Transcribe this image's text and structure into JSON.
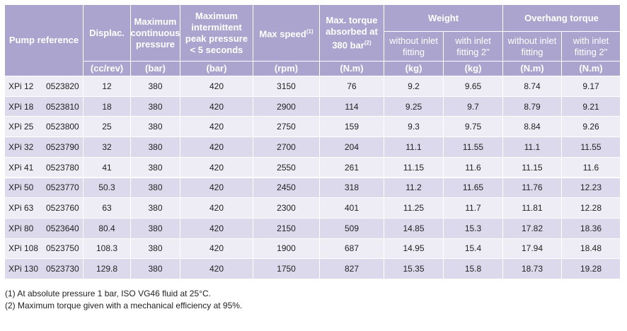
{
  "header": {
    "pump_reference": "Pump reference",
    "displacement": "Displac.",
    "max_continuous_pressure": "Maximum continuous pressure",
    "max_intermittent_pressure": "Maximum intermittent peak pressure < 5 seconds",
    "max_speed": {
      "text": "Max speed",
      "note": "(1)"
    },
    "max_torque": {
      "text": "Max. torque absorbed at 380 bar",
      "note": "(2)"
    },
    "weight": {
      "title": "Weight",
      "subs": [
        "without inlet fitting",
        "with inlet fitting 2\""
      ]
    },
    "overhang_torque": {
      "title": "Overhang torque",
      "subs": [
        "without inlet fitting",
        "with inlet fitting 2\""
      ]
    },
    "units": [
      "(cc/rev)",
      "(bar)",
      "(bar)",
      "(rpm)",
      "(N.m)",
      "(kg)",
      "(kg)",
      "(N.m)",
      "(N.m)"
    ]
  },
  "table": {
    "rows": [
      [
        "XPi 12",
        "0523820",
        "12",
        "380",
        "420",
        "3150",
        "76",
        "9.2",
        "9.65",
        "8.74",
        "9.17"
      ],
      [
        "XPi 18",
        "0523810",
        "18",
        "380",
        "420",
        "2900",
        "114",
        "9.25",
        "9.7",
        "8.79",
        "9.21"
      ],
      [
        "XPi 25",
        "0523800",
        "25",
        "380",
        "420",
        "2750",
        "159",
        "9.3",
        "9.75",
        "8.84",
        "9.26"
      ],
      [
        "XPi 32",
        "0523790",
        "32",
        "380",
        "420",
        "2700",
        "204",
        "11.1",
        "11.55",
        "11.1",
        "11.55"
      ],
      [
        "XPi 41",
        "0523780",
        "41",
        "380",
        "420",
        "2550",
        "261",
        "11.15",
        "11.6",
        "11.15",
        "11.6"
      ],
      [
        "XPi 50",
        "0523770",
        "50.3",
        "380",
        "420",
        "2450",
        "318",
        "11.2",
        "11.65",
        "11.76",
        "12.23"
      ],
      [
        "XPi 63",
        "0523760",
        "63",
        "380",
        "420",
        "2300",
        "401",
        "11.25",
        "11.7",
        "11.81",
        "12.28"
      ],
      [
        "XPi 80",
        "0523640",
        "80.4",
        "380",
        "420",
        "2150",
        "509",
        "14.85",
        "15.3",
        "17.82",
        "18.36"
      ],
      [
        "XPi 108",
        "0523750",
        "108.3",
        "380",
        "420",
        "1900",
        "687",
        "14.95",
        "15.4",
        "17.94",
        "18.48"
      ],
      [
        "XPi 130",
        "0523730",
        "129.8",
        "380",
        "420",
        "1750",
        "827",
        "15.35",
        "15.8",
        "18.73",
        "19.28"
      ]
    ]
  },
  "footnotes": [
    "(1) At absolute pressure 1 bar, ISO VG46 fluid at 25°C.",
    "(2) Maximum torque given with a mechanical efficiency at 95%."
  ]
}
